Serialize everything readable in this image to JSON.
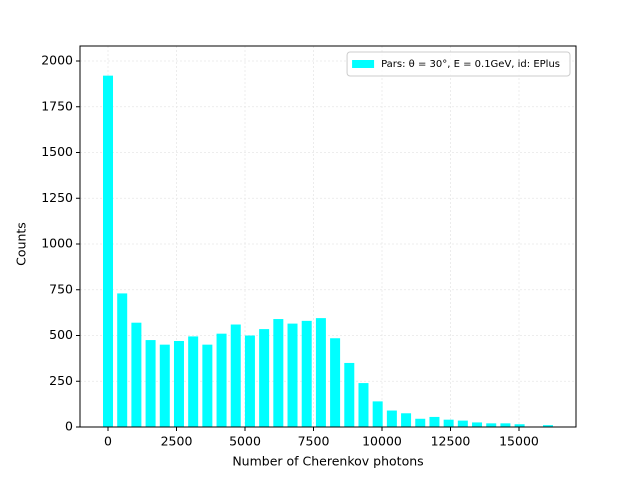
{
  "chart_data": {
    "type": "bar",
    "xlabel": "Number of Cherenkov photons",
    "ylabel": "Counts",
    "x": [
      0,
      518,
      1036,
      1554,
      2072,
      2590,
      3108,
      3626,
      4144,
      4662,
      5180,
      5698,
      6216,
      6734,
      7252,
      7770,
      8288,
      8806,
      9324,
      9842,
      10360,
      10878,
      11396,
      11914,
      12432,
      12950,
      13468,
      13986,
      14504,
      15022,
      15540,
      16058
    ],
    "series": [
      {
        "name": "Pars: θ = 30°, E = 0.1GeV, id: EPlus",
        "color": "#00ffff",
        "values": [
          1920,
          730,
          570,
          475,
          450,
          470,
          495,
          450,
          510,
          560,
          500,
          535,
          590,
          565,
          580,
          595,
          485,
          350,
          240,
          140,
          90,
          75,
          45,
          55,
          40,
          35,
          25,
          20,
          20,
          15,
          0,
          10
        ]
      }
    ],
    "xlim": [
      -1022,
      17080
    ],
    "ylim": [
      0,
      2082
    ],
    "xticks": [
      0,
      2500,
      5000,
      7500,
      10000,
      12500,
      15000
    ],
    "yticks": [
      0,
      250,
      500,
      750,
      1000,
      1250,
      1500,
      1750,
      2000
    ],
    "grid": true,
    "legend": "upper right"
  }
}
